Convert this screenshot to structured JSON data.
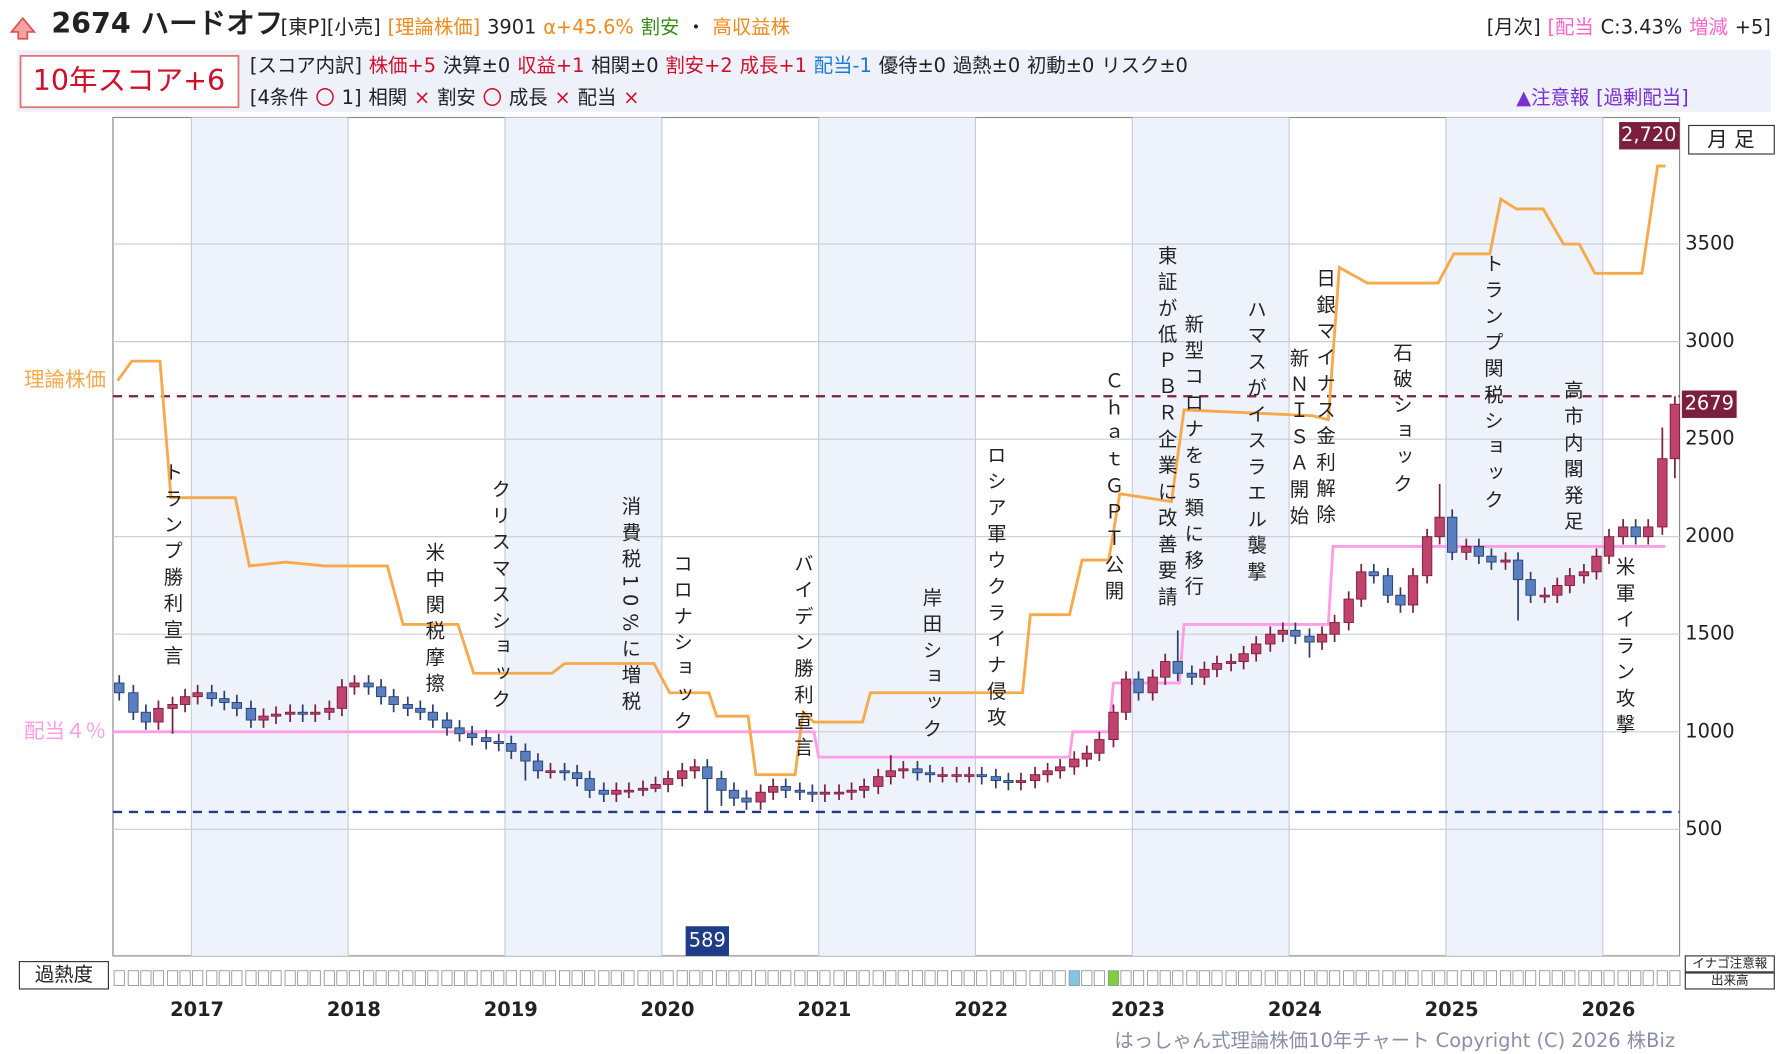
{
  "header": {
    "code_name": "2674 ハードオフ",
    "tags": [
      {
        "text": "[東P][小売]",
        "color": "#222222"
      },
      {
        "text": "[理論株価]",
        "color": "#f08a1c"
      },
      {
        "text": "3901",
        "color": "#222222"
      },
      {
        "text": "α+45.6%",
        "color": "#f08a1c"
      },
      {
        "text": "割安",
        "color": "#3a8a1a"
      },
      {
        "text": "・",
        "color": "#222222"
      },
      {
        "text": "高収益株",
        "color": "#f08a1c"
      }
    ],
    "monthly": [
      {
        "text": "[月次]",
        "color": "#222222"
      },
      {
        "text": "[配当",
        "color": "#ff66cc"
      },
      {
        "text": "C:3.43%",
        "color": "#222222"
      },
      {
        "text": "増減",
        "color": "#ff66cc"
      },
      {
        "text": "+5]",
        "color": "#222222"
      }
    ],
    "score": "10年スコア+6",
    "breakdown": [
      {
        "text": "[スコア内訳]",
        "color": "#222222"
      },
      {
        "text": "株価+5",
        "color": "#d0102a"
      },
      {
        "text": "決算±0",
        "color": "#222222"
      },
      {
        "text": "収益+1",
        "color": "#d0102a"
      },
      {
        "text": "相関±0",
        "color": "#222222"
      },
      {
        "text": "割安+2",
        "color": "#d0102a"
      },
      {
        "text": "成長+1",
        "color": "#d0102a"
      },
      {
        "text": "配当-1",
        "color": "#1a7ad8"
      },
      {
        "text": "優待±0",
        "color": "#222222"
      },
      {
        "text": "過熱±0",
        "color": "#222222"
      },
      {
        "text": "初動±0",
        "color": "#222222"
      },
      {
        "text": "リスク±0",
        "color": "#222222"
      }
    ],
    "conditions": [
      {
        "text": "[4条件",
        "color": "#222222"
      },
      {
        "text": "〇",
        "color": "#d0102a"
      },
      {
        "text": "1]",
        "color": "#222222"
      },
      {
        "text": "相関",
        "color": "#222222"
      },
      {
        "text": "×",
        "color": "#d0102a"
      },
      {
        "text": "割安",
        "color": "#222222"
      },
      {
        "text": "〇",
        "color": "#d0102a"
      },
      {
        "text": "成長",
        "color": "#222222"
      },
      {
        "text": "×",
        "color": "#d0102a"
      },
      {
        "text": "配当",
        "color": "#222222"
      },
      {
        "text": "×",
        "color": "#d0102a"
      }
    ],
    "alert": [
      {
        "text": "▲注意報",
        "color": "#7a2fd0"
      },
      {
        "text": "[過剰配当]",
        "color": "#7a2fd0"
      }
    ]
  },
  "footer": {
    "period": "月 足",
    "overheat": "過熱度",
    "inago": "イナゴ注意報",
    "volume": "出来高",
    "copyright": "はっしゃん式理論株価10年チャート Copyright (C) 2026 株Biz"
  },
  "chart_data": {
    "type": "candlestick",
    "up_color": "#c0436e",
    "down_color": "#5a7fc0",
    "xlim": [
      2016.5,
      2026.49
    ],
    "xticks": [
      2017,
      2018,
      2019,
      2020,
      2021,
      2022,
      2023,
      2024,
      2025,
      2026
    ],
    "ylim": [
      -149,
      4149
    ],
    "yticks": [
      500,
      1000,
      1500,
      2000,
      2500,
      3000,
      3500
    ],
    "grid": true,
    "x": [
      2016.54,
      2016.63,
      2016.71,
      2016.79,
      2016.88,
      2016.96,
      2017.04,
      2017.13,
      2017.21,
      2017.29,
      2017.38,
      2017.46,
      2017.54,
      2017.63,
      2017.71,
      2017.79,
      2017.88,
      2017.96,
      2018.04,
      2018.13,
      2018.21,
      2018.29,
      2018.38,
      2018.46,
      2018.54,
      2018.63,
      2018.71,
      2018.79,
      2018.88,
      2018.96,
      2019.04,
      2019.13,
      2019.21,
      2019.29,
      2019.38,
      2019.46,
      2019.54,
      2019.63,
      2019.71,
      2019.79,
      2019.88,
      2019.96,
      2020.04,
      2020.13,
      2020.21,
      2020.29,
      2020.38,
      2020.46,
      2020.54,
      2020.63,
      2020.71,
      2020.79,
      2020.88,
      2020.96,
      2021.04,
      2021.13,
      2021.21,
      2021.29,
      2021.38,
      2021.46,
      2021.54,
      2021.63,
      2021.71,
      2021.79,
      2021.88,
      2021.96,
      2022.04,
      2022.13,
      2022.21,
      2022.29,
      2022.38,
      2022.46,
      2022.54,
      2022.63,
      2022.71,
      2022.79,
      2022.88,
      2022.96,
      2023.04,
      2023.13,
      2023.21,
      2023.29,
      2023.38,
      2023.46,
      2023.54,
      2023.63,
      2023.71,
      2023.79,
      2023.88,
      2023.96,
      2024.04,
      2024.13,
      2024.21,
      2024.29,
      2024.38,
      2024.46,
      2024.54,
      2024.63,
      2024.71,
      2024.79,
      2024.88,
      2024.96,
      2025.04,
      2025.13,
      2025.21,
      2025.29,
      2025.38,
      2025.46,
      2025.54,
      2025.63,
      2025.71,
      2025.79,
      2025.88,
      2025.96,
      2026.04,
      2026.13,
      2026.21,
      2026.29,
      2026.38,
      2026.46
    ],
    "open": [
      1250,
      1200,
      1100,
      1050,
      1120,
      1140,
      1180,
      1200,
      1170,
      1150,
      1120,
      1060,
      1080,
      1090,
      1100,
      1090,
      1100,
      1120,
      1230,
      1250,
      1230,
      1180,
      1140,
      1120,
      1100,
      1060,
      1020,
      990,
      970,
      950,
      940,
      900,
      850,
      800,
      800,
      790,
      760,
      700,
      680,
      700,
      700,
      710,
      730,
      760,
      800,
      820,
      760,
      700,
      660,
      640,
      690,
      720,
      700,
      690,
      680,
      690,
      690,
      700,
      720,
      770,
      800,
      810,
      790,
      780,
      780,
      780,
      780,
      770,
      750,
      740,
      750,
      780,
      800,
      820,
      860,
      890,
      960,
      1100,
      1270,
      1200,
      1280,
      1360,
      1300,
      1280,
      1320,
      1350,
      1360,
      1400,
      1450,
      1500,
      1520,
      1490,
      1460,
      1500,
      1560,
      1680,
      1820,
      1800,
      1700,
      1650,
      1800,
      2000,
      2100,
      1920,
      1950,
      1900,
      1870,
      1880,
      1780,
      1700,
      1700,
      1750,
      1800,
      1820,
      1900,
      2000,
      2050,
      2000,
      2050,
      2400
    ],
    "high": [
      1290,
      1240,
      1140,
      1160,
      1180,
      1220,
      1240,
      1240,
      1210,
      1190,
      1160,
      1120,
      1130,
      1140,
      1140,
      1140,
      1160,
      1270,
      1290,
      1290,
      1270,
      1220,
      1180,
      1160,
      1140,
      1100,
      1060,
      1030,
      1010,
      990,
      980,
      940,
      890,
      840,
      840,
      830,
      800,
      740,
      740,
      740,
      750,
      770,
      800,
      840,
      860,
      860,
      800,
      740,
      700,
      730,
      760,
      760,
      740,
      730,
      730,
      730,
      740,
      760,
      810,
      880,
      850,
      850,
      830,
      820,
      820,
      820,
      820,
      810,
      790,
      790,
      820,
      840,
      860,
      900,
      930,
      1000,
      1140,
      1310,
      1310,
      1320,
      1400,
      1520,
      1340,
      1360,
      1390,
      1400,
      1440,
      1490,
      1540,
      1560,
      1560,
      1530,
      1540,
      1600,
      1720,
      1860,
      1860,
      1840,
      1740,
      1840,
      2040,
      2270,
      2140,
      1990,
      1990,
      1940,
      1920,
      1920,
      1820,
      1740,
      1790,
      1840,
      1860,
      1940,
      2040,
      2090,
      2090,
      2090,
      2560,
      2720
    ],
    "low": [
      1160,
      1060,
      1010,
      1010,
      990,
      1100,
      1140,
      1130,
      1110,
      1080,
      1020,
      1020,
      1040,
      1050,
      1050,
      1050,
      1060,
      1080,
      1190,
      1190,
      1140,
      1100,
      1080,
      1060,
      1020,
      980,
      950,
      930,
      910,
      900,
      860,
      750,
      760,
      760,
      750,
      720,
      660,
      640,
      640,
      660,
      670,
      690,
      690,
      720,
      760,
      589,
      620,
      620,
      600,
      600,
      650,
      660,
      650,
      640,
      640,
      650,
      650,
      660,
      680,
      730,
      760,
      750,
      740,
      740,
      740,
      740,
      730,
      710,
      700,
      700,
      710,
      740,
      760,
      780,
      820,
      850,
      920,
      1060,
      1160,
      1160,
      1240,
      1260,
      1240,
      1240,
      1280,
      1310,
      1320,
      1360,
      1410,
      1460,
      1450,
      1380,
      1420,
      1460,
      1520,
      1640,
      1760,
      1660,
      1610,
      1610,
      1760,
      1960,
      1880,
      1880,
      1860,
      1830,
      1830,
      1570,
      1660,
      1660,
      1660,
      1710,
      1760,
      1780,
      1860,
      1960,
      1960,
      1960,
      2010,
      2300
    ],
    "close": [
      1200,
      1100,
      1050,
      1120,
      1140,
      1180,
      1200,
      1170,
      1150,
      1120,
      1060,
      1080,
      1090,
      1100,
      1090,
      1100,
      1120,
      1230,
      1250,
      1230,
      1180,
      1140,
      1120,
      1100,
      1060,
      1020,
      990,
      970,
      950,
      940,
      900,
      850,
      800,
      800,
      790,
      760,
      700,
      680,
      700,
      700,
      710,
      730,
      760,
      800,
      820,
      760,
      700,
      660,
      640,
      690,
      720,
      700,
      690,
      680,
      690,
      690,
      700,
      720,
      770,
      800,
      810,
      790,
      780,
      780,
      780,
      780,
      770,
      750,
      740,
      750,
      780,
      800,
      820,
      860,
      890,
      960,
      1100,
      1270,
      1200,
      1280,
      1360,
      1300,
      1280,
      1320,
      1350,
      1360,
      1400,
      1450,
      1500,
      1520,
      1490,
      1460,
      1500,
      1560,
      1680,
      1820,
      1800,
      1700,
      1650,
      1800,
      2000,
      2100,
      1920,
      1950,
      1900,
      1870,
      1880,
      1780,
      1700,
      1700,
      1750,
      1800,
      1820,
      1900,
      2000,
      2050,
      2000,
      2050,
      2400,
      2679
    ],
    "max_price": {
      "value": 2720,
      "label": "2,720",
      "color": "#7a1f3d"
    },
    "min_price": {
      "value": 589,
      "color": "#1f3c88"
    },
    "lines": [
      {
        "name": "理論株価",
        "color": "#f7a94b",
        "x": [
          2016.53,
          2016.62,
          2016.8,
          2016.87,
          2017.28,
          2017.37,
          2017.6,
          2017.85,
          2018.25,
          2018.35,
          2018.7,
          2018.8,
          2019.3,
          2019.38,
          2019.95,
          2020.05,
          2020.3,
          2020.35,
          2020.55,
          2020.6,
          2020.85,
          2020.9,
          2020.97,
          2021.28,
          2021.33,
          2022.3,
          2022.35,
          2022.6,
          2022.68,
          2022.85,
          2022.92,
          2023.25,
          2023.33,
          2024.15,
          2024.25,
          2024.32,
          2024.5,
          2024.95,
          2025.05,
          2025.28,
          2025.35,
          2025.45,
          2025.62,
          2025.75,
          2025.85,
          2025.95,
          2026.25,
          2026.35,
          2026.4
        ],
        "values": [
          2800,
          2900,
          2900,
          2200,
          2200,
          1850,
          1870,
          1850,
          1850,
          1550,
          1550,
          1300,
          1300,
          1350,
          1350,
          1200,
          1200,
          1080,
          1080,
          780,
          780,
          1100,
          1050,
          1050,
          1200,
          1200,
          1600,
          1600,
          1880,
          1880,
          2220,
          2180,
          2650,
          2620,
          2600,
          3380,
          3300,
          3300,
          3450,
          3450,
          3730,
          3680,
          3680,
          3500,
          3500,
          3350,
          3350,
          3900,
          3900
        ]
      },
      {
        "name": "配当４％",
        "color": "#ff9ee6",
        "x": [
          2016.5,
          2020.97,
          2021.0,
          2022.6,
          2022.62,
          2022.85,
          2022.88,
          2023.3,
          2023.33,
          2024.25,
          2024.28,
          2026.4
        ],
        "values": [
          1000,
          1000,
          870,
          870,
          1000,
          1000,
          1250,
          1250,
          1550,
          1550,
          1950,
          1950
        ]
      }
    ],
    "annotations": [
      {
        "text": "トランプ勝利宣言",
        "x": 2016.87,
        "y": 2383
      },
      {
        "text": "米中関税摩擦",
        "x": 2018.54,
        "y": 1974
      },
      {
        "text": "クリスマスショック",
        "x": 2018.96,
        "y": 2295
      },
      {
        "text": "消費税10%に増税",
        "x": 2019.79,
        "y": 2208
      },
      {
        "text": "コロナショック",
        "x": 2020.12,
        "y": 1915
      },
      {
        "text": "バイデン勝利宣言",
        "x": 2020.89,
        "y": 1915
      },
      {
        "text": "岸田ショック",
        "x": 2021.71,
        "y": 1740
      },
      {
        "text": "ロシア軍ウクライナ侵攻",
        "x": 2022.12,
        "y": 2471
      },
      {
        "text": "ＣｈａｔＧＰＴ公開",
        "x": 2022.87,
        "y": 2851
      },
      {
        "text": "東証が低ＰＢＲ企業に改善要請",
        "x": 2023.21,
        "y": 3494
      },
      {
        "text": "新型コロナを５類に移行",
        "x": 2023.38,
        "y": 3143
      },
      {
        "text": "ハマスがイスラエル襲撃",
        "x": 2023.78,
        "y": 3219
      },
      {
        "text": "新ＮＩＳＡ開始",
        "x": 2024.05,
        "y": 2968
      },
      {
        "text": "日銀マイナス金利解除",
        "x": 2024.22,
        "y": 3377
      },
      {
        "text": "石破ショック",
        "x": 2024.71,
        "y": 2997
      },
      {
        "text": "トランプ関税ショック",
        "x": 2025.29,
        "y": 3453
      },
      {
        "text": "高市内閣発足",
        "x": 2025.8,
        "y": 2804
      },
      {
        "text": "米軍イラン攻撃",
        "x": 2026.13,
        "y": 1898
      }
    ]
  }
}
